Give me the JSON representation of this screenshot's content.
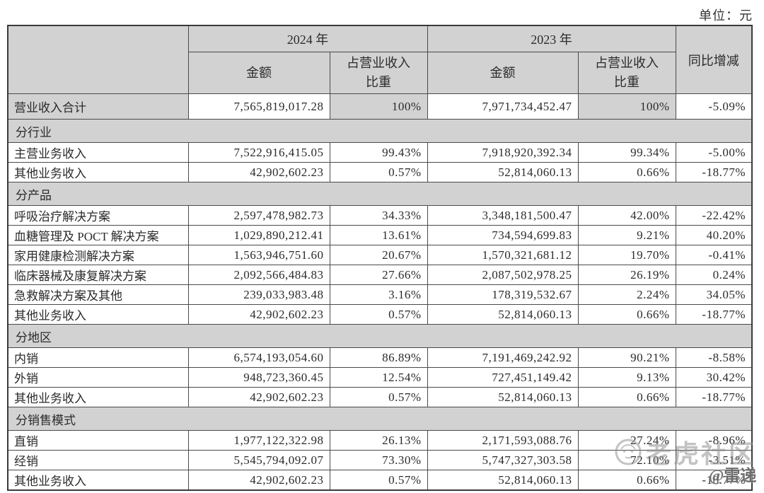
{
  "unit_label": "单位：元",
  "table": {
    "headers": {
      "year_2024": "2024 年",
      "year_2023": "2023 年",
      "amount": "金额",
      "share": "占营业收入\n比重",
      "yoy": "同比增减"
    },
    "rows": [
      {
        "type": "data",
        "first": true,
        "label": "营业收入合计",
        "a2024": "7,565,819,017.28",
        "p2024": "100%",
        "a2023": "7,971,734,452.47",
        "p2023": "100%",
        "yoy": "-5.09%"
      },
      {
        "type": "section",
        "label": "分行业"
      },
      {
        "type": "data",
        "label": "主营业务收入",
        "a2024": "7,522,916,415.05",
        "p2024": "99.43%",
        "a2023": "7,918,920,392.34",
        "p2023": "99.34%",
        "yoy": "-5.00%"
      },
      {
        "type": "data",
        "label": "其他业务收入",
        "a2024": "42,902,602.23",
        "p2024": "0.57%",
        "a2023": "52,814,060.13",
        "p2023": "0.66%",
        "yoy": "-18.77%"
      },
      {
        "type": "section",
        "label": "分产品"
      },
      {
        "type": "data",
        "label": "呼吸治疗解决方案",
        "a2024": "2,597,478,982.73",
        "p2024": "34.33%",
        "a2023": "3,348,181,500.47",
        "p2023": "42.00%",
        "yoy": "-22.42%"
      },
      {
        "type": "data",
        "label": "血糖管理及 POCT 解决方案",
        "a2024": "1,029,890,212.41",
        "p2024": "13.61%",
        "a2023": "734,594,699.83",
        "p2023": "9.21%",
        "yoy": "40.20%"
      },
      {
        "type": "data",
        "label": "家用健康检测解决方案",
        "a2024": "1,563,946,751.60",
        "p2024": "20.67%",
        "a2023": "1,570,321,681.12",
        "p2023": "19.70%",
        "yoy": "-0.41%"
      },
      {
        "type": "data",
        "label": "临床器械及康复解决方案",
        "a2024": "2,092,566,484.83",
        "p2024": "27.66%",
        "a2023": "2,087,502,978.25",
        "p2023": "26.19%",
        "yoy": "0.24%"
      },
      {
        "type": "data",
        "label": "急救解决方案及其他",
        "a2024": "239,033,983.48",
        "p2024": "3.16%",
        "a2023": "178,319,532.67",
        "p2023": "2.24%",
        "yoy": "34.05%"
      },
      {
        "type": "data",
        "label": "其他业务收入",
        "a2024": "42,902,602.23",
        "p2024": "0.57%",
        "a2023": "52,814,060.13",
        "p2023": "0.66%",
        "yoy": "-18.77%"
      },
      {
        "type": "section",
        "label": "分地区"
      },
      {
        "type": "data",
        "label": "内销",
        "a2024": "6,574,193,054.60",
        "p2024": "86.89%",
        "a2023": "7,191,469,242.92",
        "p2023": "90.21%",
        "yoy": "-8.58%"
      },
      {
        "type": "data",
        "label": "外销",
        "a2024": "948,723,360.45",
        "p2024": "12.54%",
        "a2023": "727,451,149.42",
        "p2023": "9.13%",
        "yoy": "30.42%"
      },
      {
        "type": "data",
        "label": "其他业务收入",
        "a2024": "42,902,602.23",
        "p2024": "0.57%",
        "a2023": "52,814,060.13",
        "p2023": "0.66%",
        "yoy": "-18.77%"
      },
      {
        "type": "section",
        "label": "分销售模式"
      },
      {
        "type": "data",
        "label": "直销",
        "a2024": "1,977,122,322.98",
        "p2024": "26.13%",
        "a2023": "2,171,593,088.76",
        "p2023": "27.24%",
        "yoy": "-8.96%"
      },
      {
        "type": "data",
        "label": "经销",
        "a2024": "5,545,794,092.07",
        "p2024": "73.30%",
        "a2023": "5,747,327,303.58",
        "p2023": "72.10%",
        "yoy": "-3.51%"
      },
      {
        "type": "data",
        "label": "其他业务收入",
        "a2024": "42,902,602.23",
        "p2024": "0.57%",
        "a2023": "52,814,060.13",
        "p2023": "0.66%",
        "yoy": "-18.77%"
      }
    ]
  },
  "watermark": {
    "community": "老虎社区",
    "credit": "@雷递"
  },
  "colors": {
    "header_gray": "#d2d2d2",
    "border": "#4a4a4a",
    "text": "#2b2b2b"
  }
}
